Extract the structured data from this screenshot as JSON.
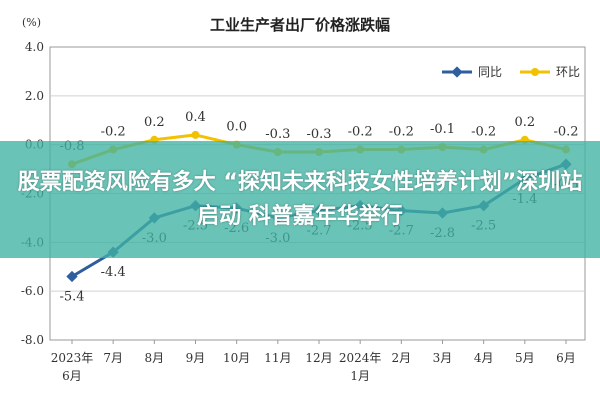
{
  "banner": {
    "text": "股票配资风险有多大 “探知未来科技女性培养计划”深圳站启动 科普嘉年华举行"
  },
  "chart_data": {
    "type": "line",
    "title": "工业生产者出厂价格涨跌幅",
    "ylabel": "(%)",
    "xlabel": "",
    "ylim": [
      -8.0,
      4.0
    ],
    "yticks": [
      "4.0",
      "2.0",
      "0.0",
      "-2.0",
      "-4.0",
      "-6.0",
      "-8.0"
    ],
    "categories": [
      "2023年\n6月",
      "7月",
      "8月",
      "9月",
      "10月",
      "11月",
      "12月",
      "2024年\n1月",
      "2月",
      "3月",
      "4月",
      "5月",
      "6月"
    ],
    "grid": true,
    "legend_position": "top-right",
    "series": [
      {
        "name": "同比",
        "color": "#2e5e9e",
        "values": [
          -5.4,
          -4.4,
          -3.0,
          -2.5,
          -2.6,
          -3.0,
          -2.7,
          -2.5,
          -2.7,
          -2.8,
          -2.5,
          -1.4,
          -0.8
        ],
        "labels": [
          "-5.4",
          "-4.4",
          "-3.0",
          "-2.5",
          "-2.6",
          "-3.0",
          "-2.7",
          "-2.5",
          "-2.7",
          "-2.8",
          "-2.5",
          "-1.4",
          "-0.8"
        ]
      },
      {
        "name": "环比",
        "color": "#f2c200",
        "values": [
          -0.8,
          -0.2,
          0.2,
          0.4,
          0.0,
          -0.3,
          -0.3,
          -0.2,
          -0.2,
          -0.1,
          -0.2,
          0.2,
          -0.2
        ],
        "labels": [
          "-0.8",
          "-0.2",
          "0.2",
          "0.4",
          "0.0",
          "-0.3",
          "-0.3",
          "-0.2",
          "-0.2",
          "-0.1",
          "-0.2",
          "0.2",
          "-0.2"
        ]
      }
    ]
  }
}
